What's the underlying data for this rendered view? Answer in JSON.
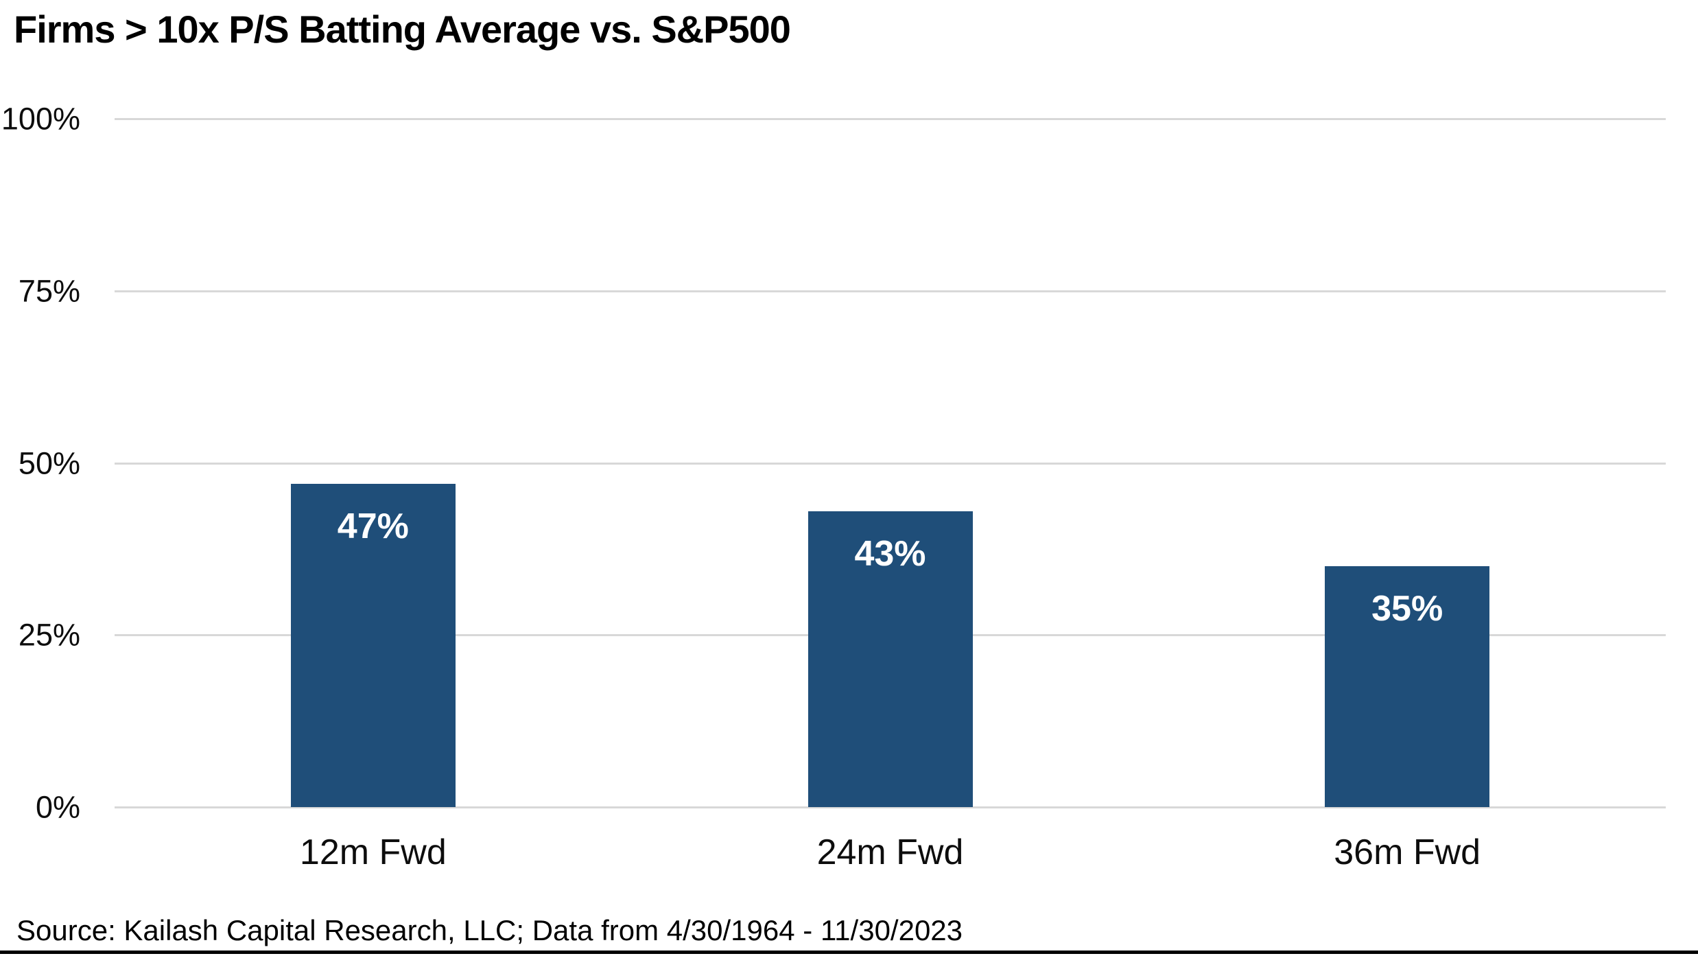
{
  "title": "Firms > 10x P/S Batting Average vs. S&P500",
  "source_note": "Source: Kailash Capital Research, LLC; Data from 4/30/1964 - 11/30/2023",
  "colors": {
    "bar": "#1F4E79",
    "gridline": "#D8D8D8",
    "title_text": "#000000",
    "axis_text": "#0D0D0D",
    "value_label_text": "#FFFFFF",
    "bottom_rule": "#000000",
    "background": "#FFFFFF"
  },
  "chart_data": {
    "type": "bar",
    "categories": [
      "12m Fwd",
      "24m Fwd",
      "36m Fwd"
    ],
    "values": [
      47,
      43,
      35
    ],
    "value_labels": [
      "47%",
      "43%",
      "35%"
    ],
    "title": "Firms > 10x P/S Batting Average vs. S&P500",
    "xlabel": "",
    "ylabel": "",
    "ylim": [
      0,
      100
    ],
    "y_ticks": [
      0,
      25,
      50,
      75,
      100
    ],
    "y_tick_labels": [
      "0%",
      "25%",
      "50%",
      "75%",
      "100%"
    ],
    "grid": "horizontal",
    "legend": "none"
  }
}
